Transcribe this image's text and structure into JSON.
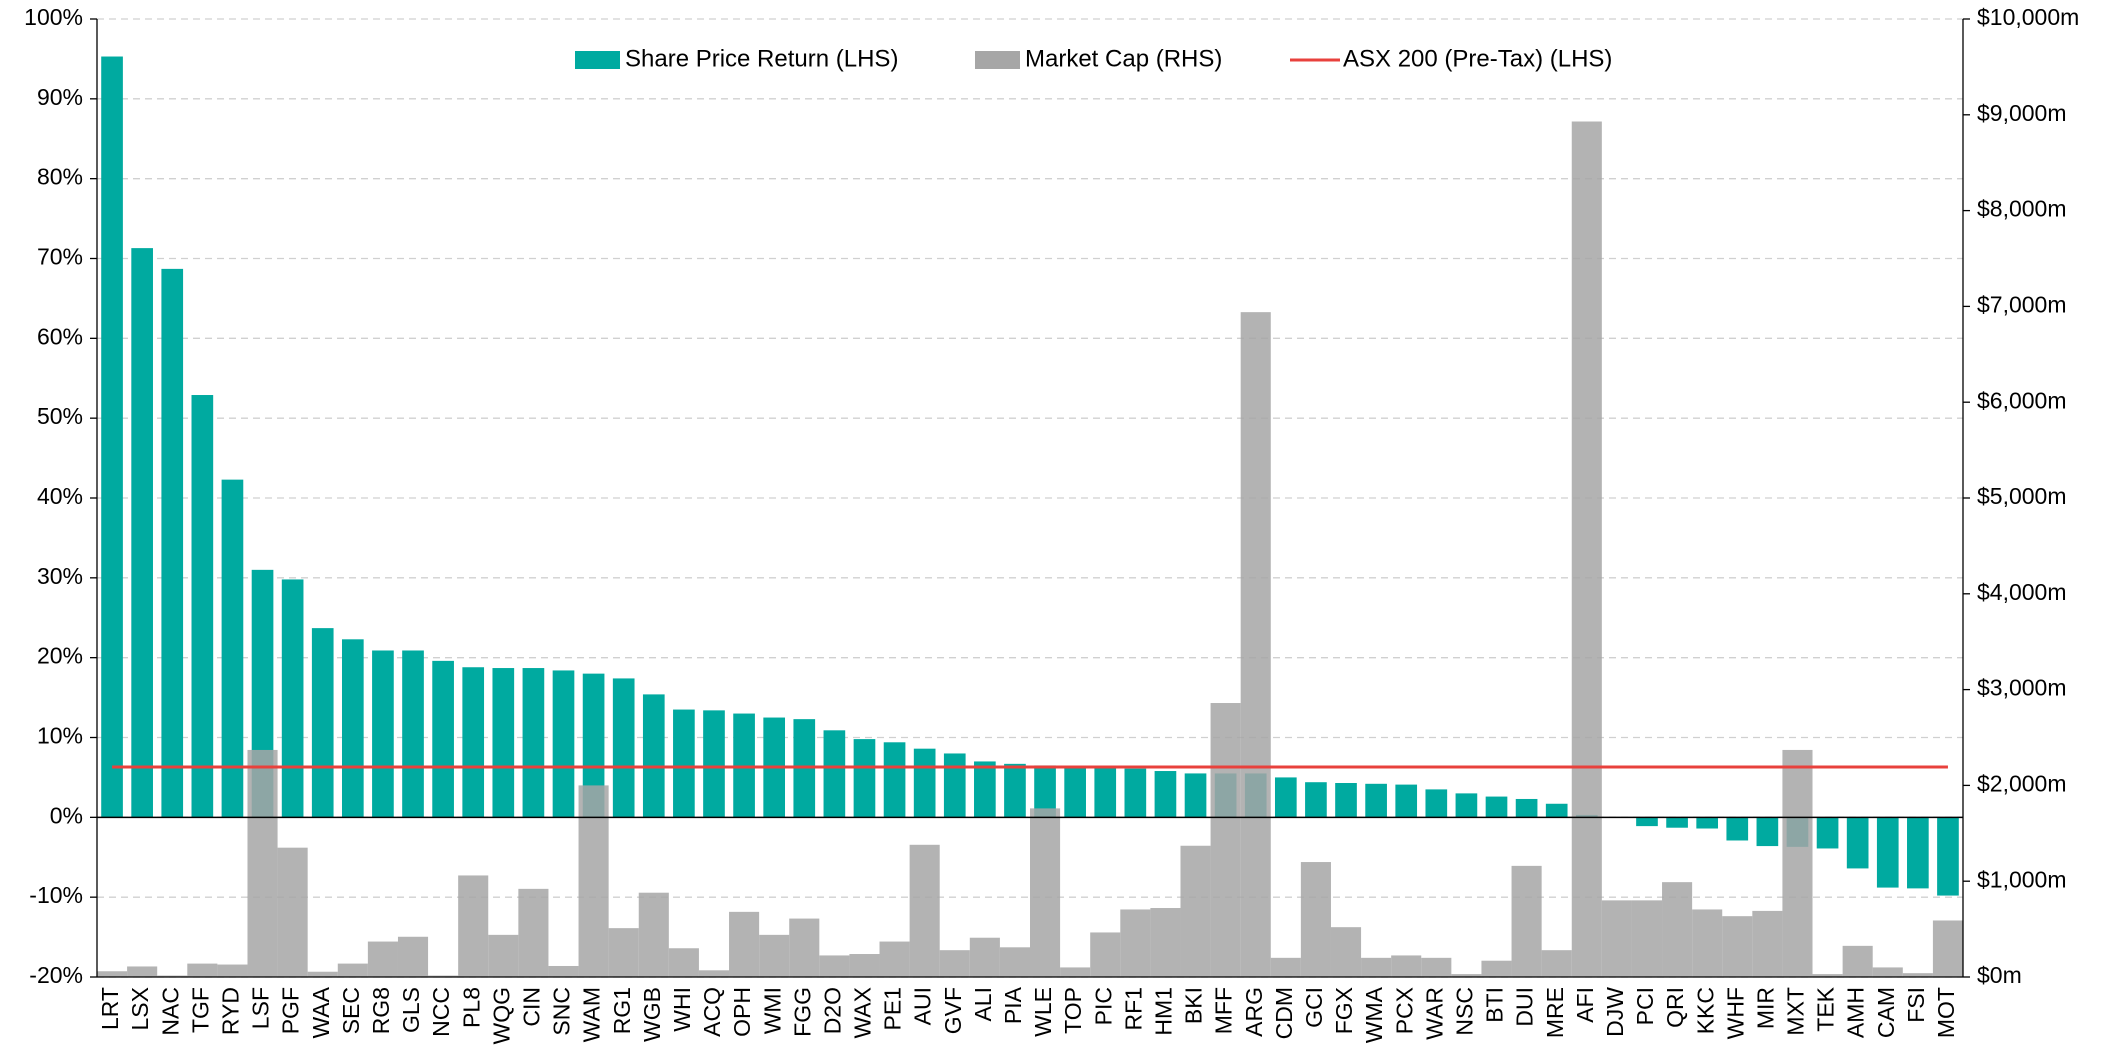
{
  "chart_data": {
    "type": "bar",
    "categories": [
      "LRT",
      "LSX",
      "NAC",
      "TGF",
      "RYD",
      "LSF",
      "PGF",
      "WAA",
      "SEC",
      "RG8",
      "GLS",
      "NCC",
      "PL8",
      "WQG",
      "CIN",
      "SNC",
      "WAM",
      "RG1",
      "WGB",
      "WHI",
      "ACQ",
      "OPH",
      "WMI",
      "FGG",
      "D2O",
      "WAX",
      "PE1",
      "AUI",
      "GVF",
      "ALI",
      "PIA",
      "WLE",
      "TOP",
      "PIC",
      "RF1",
      "HM1",
      "BKI",
      "MFF",
      "ARG",
      "CDM",
      "GCI",
      "FGX",
      "WMA",
      "PCX",
      "WAR",
      "NSC",
      "BTI",
      "DUI",
      "MRE",
      "AFI",
      "DJW",
      "PCI",
      "QRI",
      "KKC",
      "WHF",
      "MIR",
      "MXT",
      "TEK",
      "AMH",
      "CAM",
      "FSI",
      "MOT"
    ],
    "series": [
      {
        "name": "Share Price Return (LHS)",
        "type": "bar",
        "color": "#00aaa0",
        "values": [
          95.3,
          71.3,
          68.7,
          52.9,
          42.3,
          31.0,
          29.8,
          23.7,
          22.3,
          20.9,
          20.9,
          19.6,
          18.8,
          18.7,
          18.7,
          18.4,
          18.0,
          17.4,
          15.4,
          13.5,
          13.4,
          13.0,
          12.5,
          12.3,
          10.9,
          9.8,
          9.4,
          8.6,
          8.0,
          7.0,
          6.7,
          6.5,
          6.4,
          6.2,
          6.1,
          5.8,
          5.5,
          5.5,
          5.5,
          5.0,
          4.4,
          4.3,
          4.2,
          4.1,
          3.5,
          3.0,
          2.6,
          2.3,
          1.7,
          0.3,
          0.0,
          -1.1,
          -1.3,
          -1.4,
          -2.9,
          -3.6,
          -3.7,
          -3.9,
          -6.4,
          -8.8,
          -8.9,
          -9.8
        ]
      },
      {
        "name": "Market Cap (RHS)",
        "type": "column",
        "axis": "y2",
        "color": "#a6a6a6",
        "values": [
          60,
          110,
          15,
          140,
          130,
          2370,
          1350,
          55,
          140,
          370,
          420,
          15,
          1060,
          440,
          920,
          115,
          2000,
          510,
          880,
          300,
          70,
          680,
          440,
          610,
          225,
          240,
          370,
          1380,
          280,
          410,
          310,
          1760,
          100,
          465,
          705,
          720,
          1370,
          2860,
          6940,
          200,
          1200,
          520,
          200,
          225,
          200,
          30,
          170,
          1160,
          280,
          8930,
          800,
          800,
          990,
          705,
          635,
          690,
          2370,
          30,
          325,
          100,
          40,
          590
        ]
      },
      {
        "name": "ASX 200 (Pre-Tax) (LHS)",
        "type": "line",
        "color": "#e8413c",
        "values": [
          6.3,
          6.3,
          6.3,
          6.3,
          6.3,
          6.3,
          6.3,
          6.3,
          6.3,
          6.3,
          6.3,
          6.3,
          6.3,
          6.3,
          6.3,
          6.3,
          6.3,
          6.3,
          6.3,
          6.3,
          6.3,
          6.3,
          6.3,
          6.3,
          6.3,
          6.3,
          6.3,
          6.3,
          6.3,
          6.3,
          6.3,
          6.3,
          6.3,
          6.3,
          6.3,
          6.3,
          6.3,
          6.3,
          6.3,
          6.3,
          6.3,
          6.3,
          6.3,
          6.3,
          6.3,
          6.3,
          6.3,
          6.3,
          6.3,
          6.3,
          6.3,
          6.3,
          6.3,
          6.3,
          6.3,
          6.3,
          6.3,
          6.3,
          6.3,
          6.3,
          6.3,
          6.3
        ]
      }
    ],
    "ylim": [
      -20,
      100
    ],
    "yticks": [
      {
        "value": -20,
        "label": "-20%"
      },
      {
        "value": -10,
        "label": "-10%"
      },
      {
        "value": 0,
        "label": "0%"
      },
      {
        "value": 10,
        "label": "10%"
      },
      {
        "value": 20,
        "label": "20%"
      },
      {
        "value": 30,
        "label": "30%"
      },
      {
        "value": 40,
        "label": "40%"
      },
      {
        "value": 50,
        "label": "50%"
      },
      {
        "value": 60,
        "label": "60%"
      },
      {
        "value": 70,
        "label": "70%"
      },
      {
        "value": 80,
        "label": "80%"
      },
      {
        "value": 90,
        "label": "90%"
      },
      {
        "value": 100,
        "label": "100%"
      }
    ],
    "y2lim": [
      0,
      10000
    ],
    "y2ticks": [
      {
        "value": 0,
        "label": "$0m"
      },
      {
        "value": 1000,
        "label": "$1,000m"
      },
      {
        "value": 2000,
        "label": "$2,000m"
      },
      {
        "value": 3000,
        "label": "$3,000m"
      },
      {
        "value": 4000,
        "label": "$4,000m"
      },
      {
        "value": 5000,
        "label": "$5,000m"
      },
      {
        "value": 6000,
        "label": "$6,000m"
      },
      {
        "value": 7000,
        "label": "$7,000m"
      },
      {
        "value": 8000,
        "label": "$8,000m"
      },
      {
        "value": 9000,
        "label": "$9,000m"
      },
      {
        "value": 10000,
        "label": "$10,000m"
      }
    ],
    "grid": true,
    "legend": "top"
  }
}
